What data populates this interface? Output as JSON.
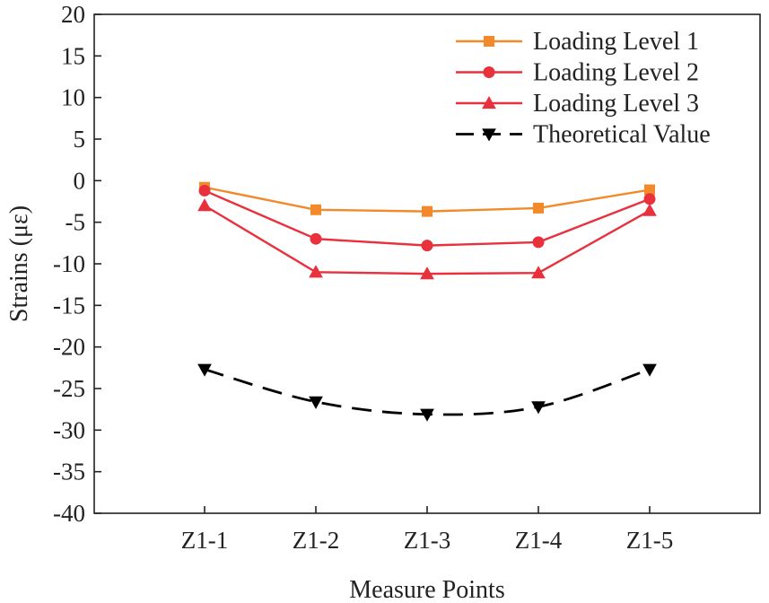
{
  "chart_data": {
    "type": "line",
    "title": "",
    "xlabel": "Measure Points",
    "ylabel": "Strains (με)",
    "categories": [
      "Z1-1",
      "Z1-2",
      "Z1-3",
      "Z1-4",
      "Z1-5"
    ],
    "ylim": [
      -40,
      20
    ],
    "yticks": [
      20,
      15,
      10,
      5,
      0,
      -5,
      -10,
      -15,
      -20,
      -25,
      -30,
      -35,
      -40
    ],
    "ytick_labels": [
      "20",
      "15",
      "10",
      "5",
      "0",
      "-5",
      "-10",
      "-15",
      "-20",
      "-25",
      "-30",
      "-35",
      "-40"
    ],
    "grid": false,
    "legend_position": "top-right",
    "series": [
      {
        "name": "Loading Level 1",
        "values": [
          -0.8,
          -3.5,
          -3.7,
          -3.3,
          -1.1
        ],
        "color": "#f28a2c",
        "marker": "square",
        "dash": "solid"
      },
      {
        "name": "Loading Level 2",
        "values": [
          -1.2,
          -7.0,
          -7.8,
          -7.4,
          -2.2
        ],
        "color": "#e8313d",
        "marker": "circle",
        "dash": "solid"
      },
      {
        "name": "Loading Level 3",
        "values": [
          -3.0,
          -11.0,
          -11.2,
          -11.1,
          -3.6
        ],
        "color": "#e8313d",
        "marker": "triangle-up",
        "dash": "solid"
      },
      {
        "name": "Theoretical Value",
        "values": [
          -22.7,
          -26.6,
          -28.1,
          -27.2,
          -22.7
        ],
        "color": "#000000",
        "marker": "triangle-down",
        "dash": "dashed"
      }
    ]
  }
}
